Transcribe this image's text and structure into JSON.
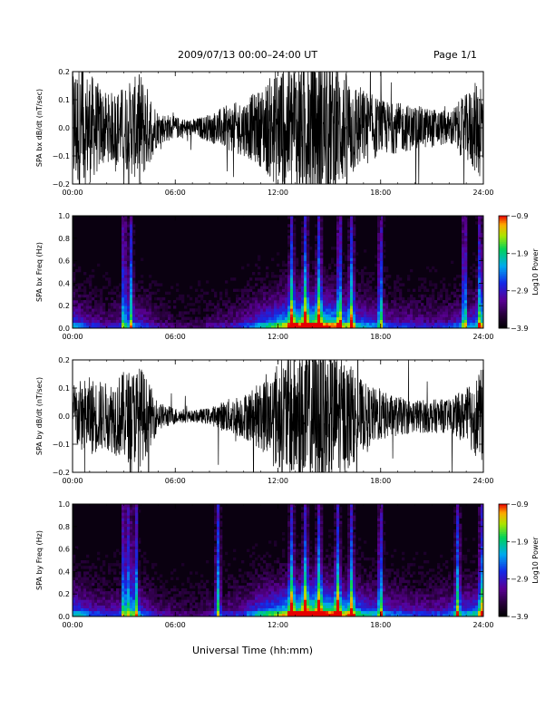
{
  "header": {
    "title": "2009/07/13  00:00–24:00 UT",
    "page": "Page 1/1"
  },
  "bottom_label": "Universal Time (hh:mm)",
  "chart_data": [
    {
      "type": "line",
      "ylabel": "SPA bx dB/dt (nT/sec)",
      "xlim": [
        0,
        24
      ],
      "ylim": [
        -0.2,
        0.2
      ],
      "yticks": [
        "0.2",
        "0.1",
        "0.0",
        "−0.1",
        "−0.2"
      ],
      "xticks": [
        "00:00",
        "06:00",
        "12:00",
        "18:00",
        "24:00"
      ],
      "series": [
        {
          "x": [
            0,
            1,
            2,
            3,
            4,
            5,
            6,
            7,
            8,
            9,
            10,
            11,
            12,
            13,
            14,
            15,
            16,
            17,
            18,
            19,
            20,
            21,
            22,
            23,
            24
          ],
          "amplitude": [
            0.24,
            0.2,
            0.12,
            0.15,
            0.2,
            0.06,
            0.04,
            0.03,
            0.05,
            0.08,
            0.1,
            0.14,
            0.22,
            0.25,
            0.26,
            0.25,
            0.2,
            0.14,
            0.1,
            0.09,
            0.08,
            0.07,
            0.06,
            0.12,
            0.2
          ]
        }
      ]
    },
    {
      "type": "heatmap",
      "ylabel": "SPA bx Freq (Hz)",
      "xlim": [
        0,
        24
      ],
      "ylim": [
        0,
        1
      ],
      "yticks": [
        "1.0",
        "0.8",
        "0.6",
        "0.4",
        "0.2",
        "0.0"
      ],
      "xticks": [
        "00:00",
        "06:00",
        "12:00",
        "18:00",
        "24:00"
      ],
      "colorbar": {
        "label": "Log10 Power",
        "ticks": [
          "−0.9",
          "−1.9",
          "−2.9",
          "−3.9"
        ],
        "range": [
          -3.9,
          -0.9
        ]
      },
      "activity_by_hour": [
        0.45,
        0.3,
        0.22,
        0.3,
        0.35,
        0.2,
        0.15,
        0.12,
        0.18,
        0.22,
        0.3,
        0.45,
        0.6,
        0.8,
        0.85,
        0.75,
        0.6,
        0.45,
        0.35,
        0.3,
        0.28,
        0.25,
        0.3,
        0.4,
        0.5
      ],
      "bursts_hours": [
        3.0,
        3.4,
        12.8,
        13.6,
        14.4,
        15.6,
        16.3,
        18.0,
        22.9,
        23.8
      ]
    },
    {
      "type": "line",
      "ylabel": "SPA by dB/dt (nT/sec)",
      "xlim": [
        0,
        24
      ],
      "ylim": [
        -0.2,
        0.2
      ],
      "yticks": [
        "0.2",
        "0.1",
        "0.0",
        "−0.1",
        "−0.2"
      ],
      "xticks": [
        "00:00",
        "06:00",
        "12:00",
        "18:00",
        "24:00"
      ],
      "series": [
        {
          "x": [
            0,
            1,
            2,
            3,
            4,
            5,
            6,
            7,
            8,
            9,
            10,
            11,
            12,
            13,
            14,
            15,
            16,
            17,
            18,
            19,
            20,
            21,
            22,
            23,
            24
          ],
          "amplitude": [
            0.12,
            0.14,
            0.12,
            0.16,
            0.18,
            0.05,
            0.03,
            0.02,
            0.03,
            0.06,
            0.08,
            0.12,
            0.2,
            0.25,
            0.27,
            0.25,
            0.2,
            0.12,
            0.09,
            0.07,
            0.06,
            0.06,
            0.06,
            0.1,
            0.18
          ]
        }
      ]
    },
    {
      "type": "heatmap",
      "ylabel": "SPA by Freq (Hz)",
      "xlim": [
        0,
        24
      ],
      "ylim": [
        0,
        1
      ],
      "yticks": [
        "1.0",
        "0.8",
        "0.6",
        "0.4",
        "0.2",
        "0.0"
      ],
      "xticks": [
        "00:00",
        "06:00",
        "12:00",
        "18:00",
        "24:00"
      ],
      "colorbar": {
        "label": "Log10 Power",
        "ticks": [
          "−0.9",
          "−1.9",
          "−2.9",
          "−3.9"
        ],
        "range": [
          -3.9,
          -0.9
        ]
      },
      "activity_by_hour": [
        0.5,
        0.35,
        0.3,
        0.35,
        0.4,
        0.22,
        0.18,
        0.15,
        0.2,
        0.25,
        0.3,
        0.5,
        0.6,
        0.8,
        0.9,
        0.8,
        0.65,
        0.5,
        0.4,
        0.35,
        0.3,
        0.3,
        0.35,
        0.45,
        0.55
      ],
      "bursts_hours": [
        3.0,
        3.3,
        3.7,
        8.5,
        12.8,
        13.6,
        14.4,
        15.5,
        16.3,
        18.0,
        22.5,
        23.9
      ]
    }
  ]
}
